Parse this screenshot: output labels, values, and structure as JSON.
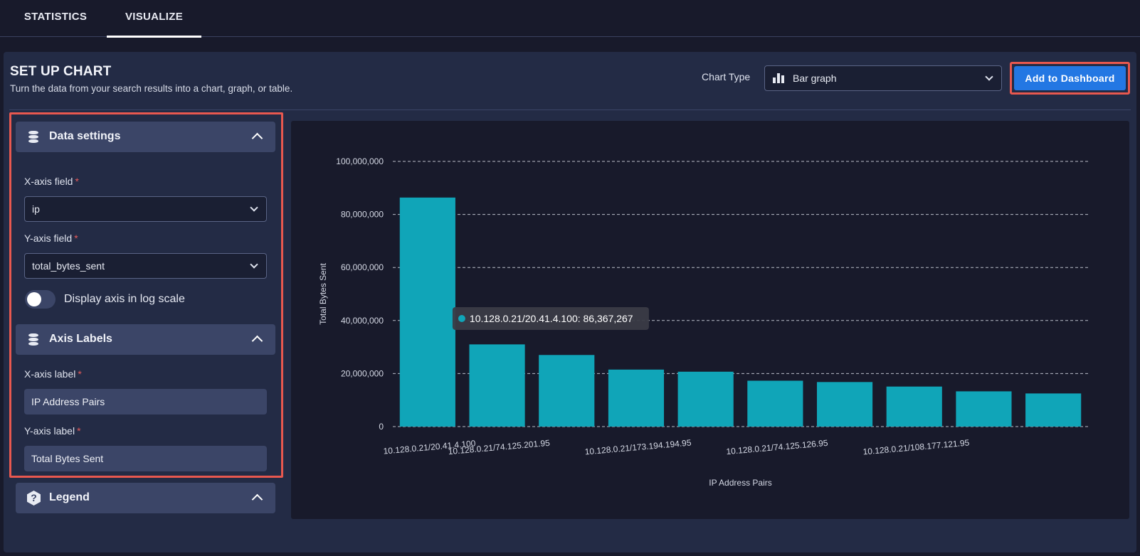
{
  "tabs": [
    {
      "label": "STATISTICS",
      "active": false
    },
    {
      "label": "VISUALIZE",
      "active": true
    }
  ],
  "header": {
    "title": "SET UP CHART",
    "subtitle": "Turn the data from your search results into a chart, graph, or table.",
    "chart_type_label": "Chart Type",
    "chart_type_value": "Bar graph",
    "add_button": "Add to Dashboard"
  },
  "sidebar": {
    "data_settings": {
      "title": "Data settings",
      "x_field_label": "X-axis field",
      "x_field_value": "ip",
      "y_field_label": "Y-axis field",
      "y_field_value": "total_bytes_sent",
      "log_scale_label": "Display axis in log scale",
      "log_scale_on": false
    },
    "axis_labels": {
      "title": "Axis Labels",
      "x_label_label": "X-axis label",
      "x_label_value": "IP Address Pairs",
      "y_label_label": "Y-axis label",
      "y_label_value": "Total Bytes Sent"
    },
    "legend": {
      "title": "Legend"
    },
    "required_mark": "*"
  },
  "colors": {
    "accent": "#2377e3",
    "bar": "#10a5b8",
    "highlight": "#e8584f"
  },
  "chart_data": {
    "type": "bar",
    "xlabel": "IP Address Pairs",
    "ylabel": "Total Bytes Sent",
    "ylim": [
      0,
      100000000
    ],
    "yticks": [
      0,
      20000000,
      40000000,
      60000000,
      80000000,
      100000000
    ],
    "ytick_labels": [
      "0",
      "20,000,000",
      "40,000,000",
      "60,000,000",
      "80,000,000",
      "100,000,000"
    ],
    "grid": true,
    "categories": [
      "10.128.0.21/20.41.4.100",
      "10.128.0.21/74.125.201.95",
      "",
      "10.128.0.21/173.194.194.95",
      "",
      "10.128.0.21/74.125.126.95",
      "",
      "10.128.0.21/108.177.121.95",
      "",
      ""
    ],
    "values": [
      86367267,
      31000000,
      27000000,
      21500000,
      20700000,
      17300000,
      16800000,
      15100000,
      13300000,
      12500000
    ],
    "tooltip": {
      "text": "10.128.0.21/20.41.4.100: 86,367,267",
      "index": 0
    }
  }
}
